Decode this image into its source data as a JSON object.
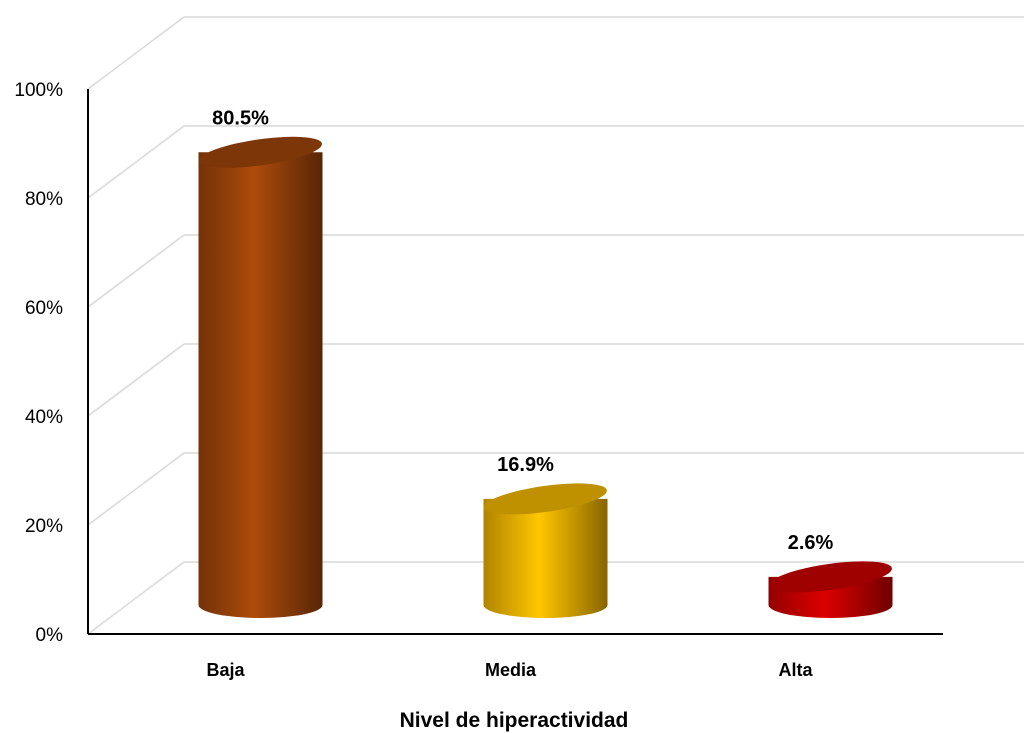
{
  "chart_data": {
    "type": "bar",
    "style": "3d-cylinder",
    "categories": [
      "Baja",
      "Media",
      "Alta"
    ],
    "values": [
      80.5,
      16.9,
      2.6
    ],
    "data_labels": [
      "80.5%",
      "16.9%",
      "2.6%"
    ],
    "colors": [
      "#a0450a",
      "#f5b800",
      "#cc0000"
    ],
    "xlabel": "Nivel de hiperactividad",
    "ylabel": "",
    "ylim": [
      0,
      100
    ],
    "yticks": [
      0,
      20,
      40,
      60,
      80,
      100
    ],
    "ytick_labels": [
      "0%",
      "20%",
      "40%",
      "60%",
      "80%",
      "100%"
    ],
    "grid": true,
    "legend": "none"
  }
}
